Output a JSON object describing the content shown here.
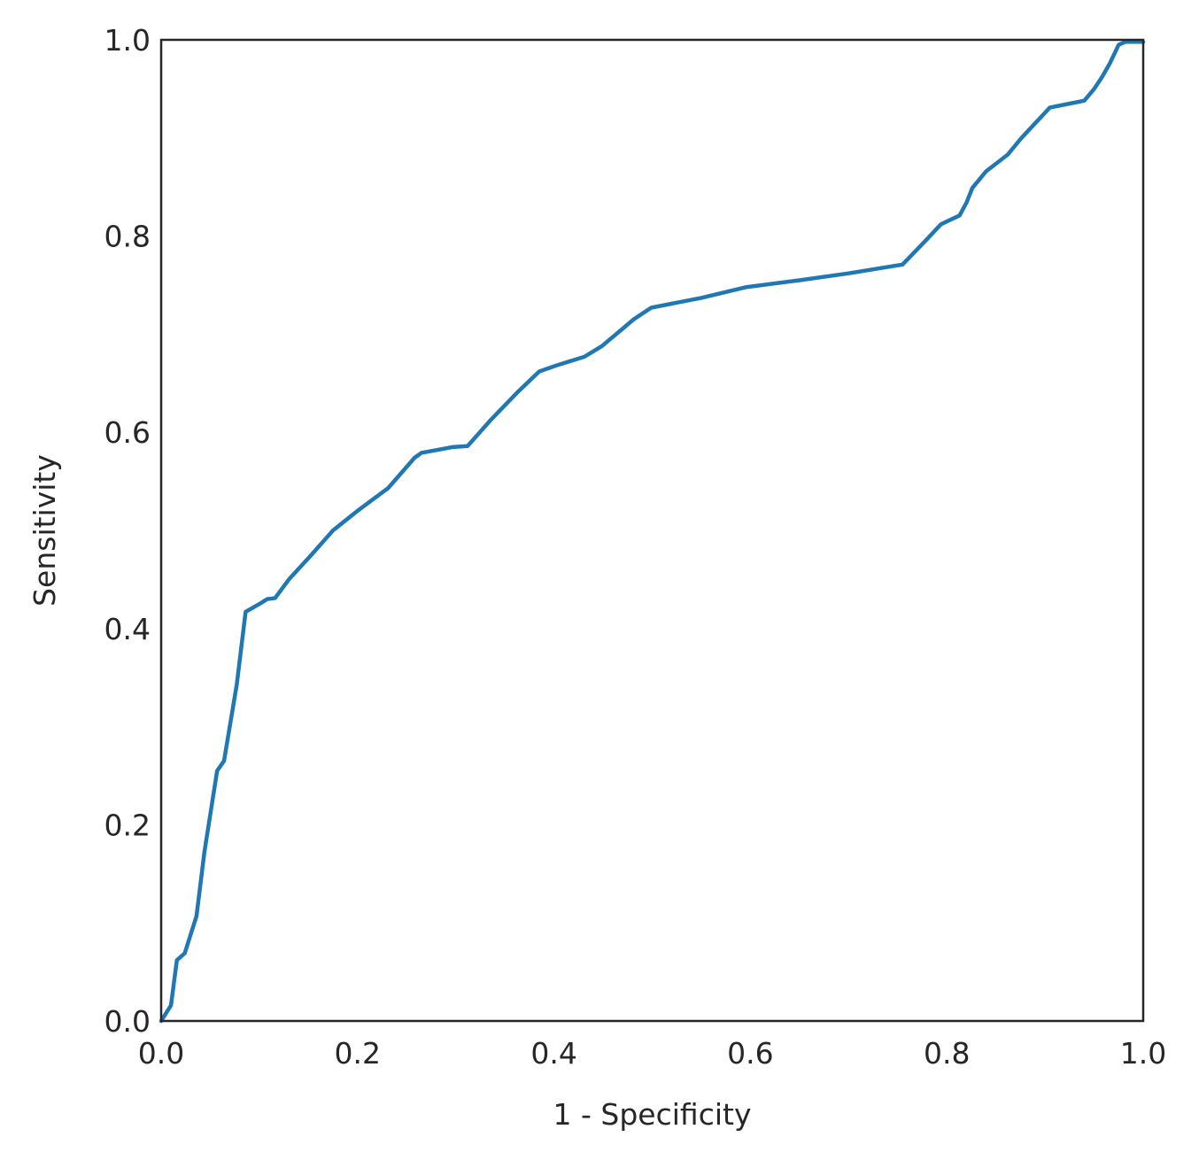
{
  "chart_data": {
    "type": "line",
    "title": "",
    "xlabel": "1 - Specificity",
    "ylabel": "Sensitivity",
    "xlim": [
      0.0,
      1.0
    ],
    "ylim": [
      0.0,
      1.0
    ],
    "xticks": [
      "0.0",
      "0.2",
      "0.4",
      "0.6",
      "0.8",
      "1.0"
    ],
    "yticks": [
      "0.0",
      "0.2",
      "0.4",
      "0.6",
      "0.8",
      "1.0"
    ],
    "grid": false,
    "legend": "none",
    "series": [
      {
        "color": "#1f77b4",
        "x": [
          0.0,
          0.01,
          0.016,
          0.024,
          0.036,
          0.044,
          0.057,
          0.064,
          0.077,
          0.086,
          0.1,
          0.108,
          0.116,
          0.13,
          0.152,
          0.175,
          0.2,
          0.231,
          0.258,
          0.265,
          0.297,
          0.312,
          0.336,
          0.362,
          0.385,
          0.402,
          0.431,
          0.449,
          0.468,
          0.481,
          0.499,
          0.55,
          0.596,
          0.65,
          0.7,
          0.755,
          0.779,
          0.794,
          0.813,
          0.82,
          0.826,
          0.84,
          0.862,
          0.876,
          0.89,
          0.905,
          0.92,
          0.94,
          0.95,
          0.958,
          0.966,
          0.975,
          0.982,
          1.0
        ],
        "y": [
          0.0,
          0.016,
          0.062,
          0.069,
          0.107,
          0.172,
          0.255,
          0.265,
          0.343,
          0.417,
          0.425,
          0.43,
          0.431,
          0.45,
          0.474,
          0.5,
          0.52,
          0.543,
          0.574,
          0.579,
          0.585,
          0.586,
          0.613,
          0.64,
          0.662,
          0.668,
          0.677,
          0.688,
          0.704,
          0.715,
          0.727,
          0.737,
          0.748,
          0.755,
          0.762,
          0.771,
          0.796,
          0.812,
          0.821,
          0.834,
          0.849,
          0.866,
          0.883,
          0.9,
          0.915,
          0.931,
          0.934,
          0.938,
          0.95,
          0.962,
          0.976,
          0.995,
          0.998,
          0.998
        ]
      }
    ]
  }
}
